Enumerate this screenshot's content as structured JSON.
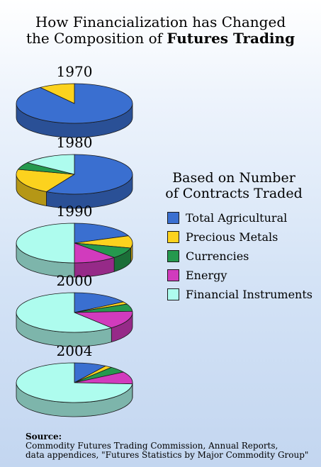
{
  "title": {
    "line1": "How Financialization has Changed",
    "line2_prefix": "the Composition of ",
    "line2_bold": "Futures Trading"
  },
  "legend": {
    "title_line1": "Based on Number",
    "title_line2": "of Contracts Traded",
    "items": [
      {
        "label": "Total Agricultural",
        "color": "#3a6fd0"
      },
      {
        "label": "Precious Metals",
        "color": "#fcd21e"
      },
      {
        "label": "Currencies",
        "color": "#25994e"
      },
      {
        "label": "Energy",
        "color": "#d13bbd"
      },
      {
        "label": "Financial Instruments",
        "color": "#aefcee"
      }
    ]
  },
  "source": {
    "heading": "Source:",
    "line1": "Commodity Futures Trading Commission, Annual Reports,",
    "line2": "data appendices, \"Futures Statistics by Major Commodity Group\""
  },
  "chart_data": {
    "type": "pie",
    "title": "How Financialization has Changed the Composition of Futures Trading",
    "subtitle": "Based on Number of Contracts Traded",
    "categories": [
      "Total Agricultural",
      "Precious Metals",
      "Currencies",
      "Energy",
      "Financial Instruments"
    ],
    "series": [
      {
        "name": "1970",
        "values": [
          90,
          10,
          0,
          0,
          0
        ]
      },
      {
        "name": "1980",
        "values": [
          58,
          21,
          6,
          0,
          15
        ]
      },
      {
        "name": "1990",
        "values": [
          19,
          10,
          9,
          12,
          50
        ]
      },
      {
        "name": "2000",
        "values": [
          16,
          2,
          6,
          15,
          61
        ]
      },
      {
        "name": "2004",
        "values": [
          9,
          2,
          5,
          10,
          74
        ]
      }
    ]
  }
}
